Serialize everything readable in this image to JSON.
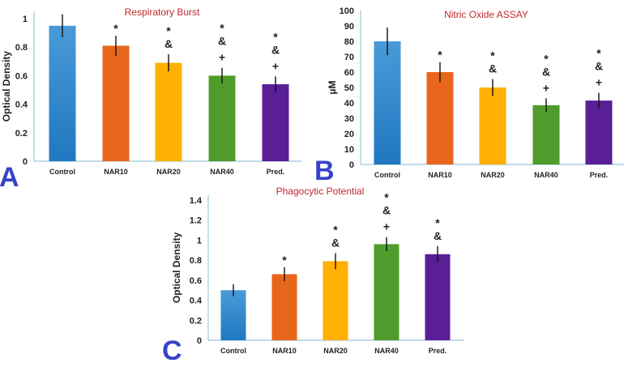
{
  "chart_data": [
    {
      "type": "bar",
      "panel_label": "A",
      "title": "Respiratory Burst",
      "xlabel": "",
      "ylabel": "Optical Density",
      "ylim": [
        0,
        1.05
      ],
      "yticks": [
        0,
        0.2,
        0.4,
        0.6,
        0.8,
        1
      ],
      "categories": [
        "Control",
        "NAR10",
        "NAR20",
        "NAR40",
        "Pred."
      ],
      "values": [
        0.95,
        0.81,
        0.69,
        0.6,
        0.54
      ],
      "errors": [
        0.08,
        0.07,
        0.06,
        0.055,
        0.055
      ],
      "annotations": [
        [],
        [
          "*"
        ],
        [
          "*",
          "&"
        ],
        [
          "*",
          "&",
          "+"
        ],
        [
          "*",
          "&",
          "+"
        ]
      ],
      "colors": [
        "#3a8fd4",
        "#e8661c",
        "#ffb000",
        "#4f9c2c",
        "#5a1e96"
      ]
    },
    {
      "type": "bar",
      "panel_label": "B",
      "title": "Nitric Oxide ASSAY",
      "xlabel": "",
      "ylabel": "µM",
      "ylim": [
        0,
        100
      ],
      "yticks": [
        0,
        10,
        20,
        30,
        40,
        50,
        60,
        70,
        80,
        90,
        100
      ],
      "categories": [
        "Control",
        "NAR10",
        "NAR20",
        "NAR40",
        "Pred."
      ],
      "values": [
        80,
        60,
        50,
        38.5,
        41.5
      ],
      "errors": [
        9,
        6.5,
        5.5,
        4.5,
        5
      ],
      "annotations": [
        [],
        [
          "*"
        ],
        [
          "*",
          "&"
        ],
        [
          "*",
          "&",
          "+"
        ],
        [
          "*",
          "&",
          "+"
        ]
      ],
      "colors": [
        "#3a8fd4",
        "#e8661c",
        "#ffb000",
        "#4f9c2c",
        "#5a1e96"
      ]
    },
    {
      "type": "bar",
      "panel_label": "C",
      "title": "Phagocytic Potential",
      "xlabel": "",
      "ylabel": "Optical Density",
      "ylim": [
        0,
        1.45
      ],
      "yticks": [
        0,
        0.2,
        0.4,
        0.6,
        0.8,
        1,
        1.2,
        1.4
      ],
      "categories": [
        "Control",
        "NAR10",
        "NAR20",
        "NAR40",
        "Pred."
      ],
      "values": [
        0.5,
        0.66,
        0.79,
        0.96,
        0.86
      ],
      "errors": [
        0.06,
        0.07,
        0.08,
        0.07,
        0.08
      ],
      "annotations": [
        [],
        [
          "*"
        ],
        [
          "*",
          "&"
        ],
        [
          "*",
          "&",
          "+"
        ],
        [
          "*",
          "&"
        ]
      ],
      "colors": [
        "#3a8fd4",
        "#e8661c",
        "#ffb000",
        "#4f9c2c",
        "#5a1e96"
      ]
    }
  ]
}
